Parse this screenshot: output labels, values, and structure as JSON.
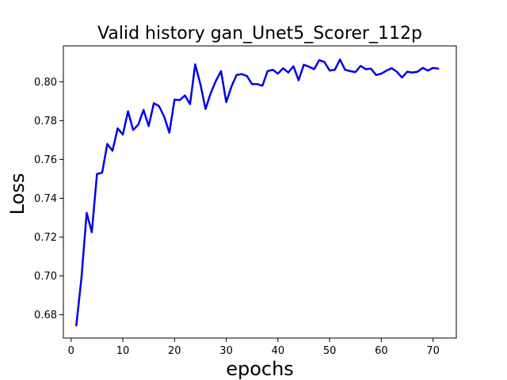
{
  "chart_data": {
    "type": "line",
    "title": "Valid history gan_Unet5_Scorer_112p",
    "xlabel": "epochs",
    "ylabel": "Loss",
    "xlim": [
      -1.5,
      74.5
    ],
    "ylim": [
      0.668,
      0.8185
    ],
    "xticks": [
      0,
      10,
      20,
      30,
      40,
      50,
      60,
      70
    ],
    "yticks": [
      0.68,
      0.7,
      0.72,
      0.74,
      0.76,
      0.78,
      0.8
    ],
    "ytick_labels": [
      "0.68",
      "0.70",
      "0.72",
      "0.74",
      "0.76",
      "0.78",
      "0.80"
    ],
    "grid": false,
    "color": "#0000ee",
    "x": [
      1,
      2,
      3,
      4,
      5,
      6,
      7,
      8,
      9,
      10,
      11,
      12,
      13,
      14,
      15,
      16,
      17,
      18,
      19,
      20,
      21,
      22,
      23,
      24,
      25,
      26,
      27,
      28,
      29,
      30,
      31,
      32,
      33,
      34,
      35,
      36,
      37,
      38,
      39,
      40,
      41,
      42,
      43,
      44,
      45,
      46,
      47,
      48,
      49,
      50,
      51,
      52,
      53,
      54,
      55,
      56,
      57,
      58,
      59,
      60,
      61,
      62,
      63,
      64,
      65,
      66,
      67,
      68,
      69,
      70,
      71
    ],
    "y": [
      0.6745,
      0.699,
      0.7325,
      0.7225,
      0.7525,
      0.7532,
      0.768,
      0.7645,
      0.776,
      0.7728,
      0.7848,
      0.7752,
      0.778,
      0.7855,
      0.7772,
      0.789,
      0.7875,
      0.782,
      0.7738,
      0.7908,
      0.7906,
      0.793,
      0.7885,
      0.809,
      0.7988,
      0.786,
      0.7942,
      0.8005,
      0.8055,
      0.7895,
      0.7975,
      0.8035,
      0.804,
      0.803,
      0.7988,
      0.7988,
      0.798,
      0.8055,
      0.8062,
      0.8042,
      0.807,
      0.8048,
      0.808,
      0.8008,
      0.8088,
      0.8078,
      0.8065,
      0.8112,
      0.8102,
      0.8058,
      0.8062,
      0.8115,
      0.8062,
      0.8055,
      0.805,
      0.8082,
      0.8065,
      0.8068,
      0.8035,
      0.8042,
      0.8058,
      0.807,
      0.8052,
      0.8022,
      0.8052,
      0.8048,
      0.8052,
      0.8072,
      0.8058,
      0.8072,
      0.8068
    ]
  }
}
